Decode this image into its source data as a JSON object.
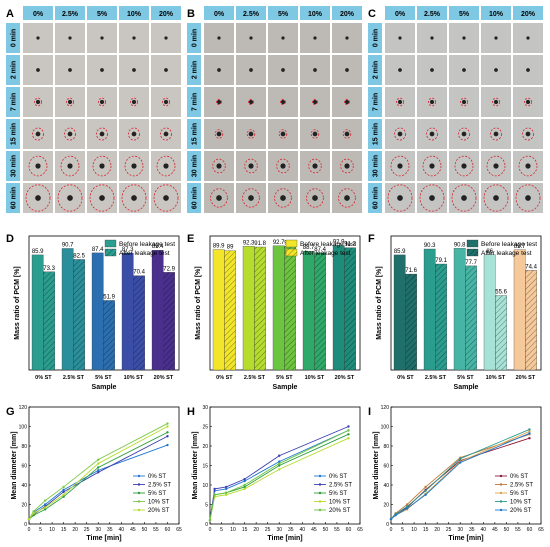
{
  "panel_letters": [
    "A",
    "B",
    "C",
    "D",
    "E",
    "F",
    "G",
    "H",
    "I"
  ],
  "photo_grid": {
    "col_headers": [
      "0%",
      "2.5%",
      "5%",
      "10%",
      "20%"
    ],
    "row_headers": [
      "0 min",
      "2 min",
      "7 min",
      "15 min",
      "30 min",
      "60 min"
    ],
    "header_color": "#7ec8e3",
    "ring_color": "#d9202a",
    "tile_colors": [
      "#c9c5c0",
      "#bdbab6",
      "#c4c4c2"
    ]
  },
  "chart_data": [
    {
      "panel": "D",
      "type": "bar",
      "categories": [
        "0% ST",
        "2.5% ST",
        "5% ST",
        "10% ST",
        "20% ST"
      ],
      "series": [
        {
          "name": "Before leakage test",
          "values": [
            85.9,
            90.7,
            87.4,
            87.3,
            89.4
          ]
        },
        {
          "name": "After leakage test",
          "values": [
            73.3,
            82.5,
            51.9,
            70.4,
            72.9
          ]
        }
      ],
      "colors": [
        "#2a9d8f",
        "#2a8f9a",
        "#2c6fb0",
        "#3a4ea8",
        "#4a2f8c"
      ],
      "legend_colors": [
        "#2a9d8f",
        "#2a9d8f"
      ],
      "xlabel": "Sample",
      "ylabel": "Mass ratio of PCM [%]",
      "ylim": [
        0,
        100
      ],
      "legend": "top-right"
    },
    {
      "panel": "E",
      "type": "bar",
      "categories": [
        "0% ST",
        "2.5% ST",
        "5% ST",
        "10% ST",
        "20% ST"
      ],
      "series": [
        {
          "name": "Before leakage test",
          "values": [
            89.9,
            92.3,
            92.7,
            88.7,
            92.9
          ]
        },
        {
          "name": "After leakage test",
          "values": [
            89.0,
            91.8,
            92.2,
            87.4,
            91.3
          ]
        }
      ],
      "colors": [
        "#f2e52a",
        "#b6dc2e",
        "#6cc53e",
        "#2fa96a",
        "#1e8c7a"
      ],
      "legend_colors": [
        "#f2e52a",
        "#f2e52a"
      ],
      "xlabel": "Sample",
      "ylabel": "Mass ratio of PCM [%]",
      "ylim": [
        0,
        100
      ],
      "legend": "top-right"
    },
    {
      "panel": "F",
      "type": "bar",
      "categories": [
        "0% ST",
        "2.5% ST",
        "5% ST",
        "10% ST",
        "20% ST"
      ],
      "series": [
        {
          "name": "Before leakage test",
          "values": [
            85.9,
            90.3,
            90.8,
            86.0,
            89.7
          ]
        },
        {
          "name": "After leakage test",
          "values": [
            71.6,
            79.1,
            77.7,
            55.6,
            74.4
          ]
        }
      ],
      "colors": [
        "#1f6f6a",
        "#2a9d8f",
        "#46b5a5",
        "#a6e3d6",
        "#f6c99b"
      ],
      "legend_colors": [
        "#1f6f6a",
        "#1f6f6a"
      ],
      "xlabel": "Sample",
      "ylabel": "Mass ratio of PCM [%]",
      "ylim": [
        0,
        100
      ],
      "legend": "top-right"
    },
    {
      "panel": "G",
      "type": "line",
      "x": [
        0,
        2,
        7,
        15,
        30,
        60
      ],
      "series": [
        {
          "name": "0% ST",
          "values": [
            5,
            12,
            20,
            35,
            55,
            81
          ]
        },
        {
          "name": "2.5% ST",
          "values": [
            5,
            10,
            18,
            33,
            53,
            90
          ]
        },
        {
          "name": "5% ST",
          "values": [
            5,
            9,
            15,
            28,
            58,
            94
          ]
        },
        {
          "name": "10% ST",
          "values": [
            5,
            13,
            24,
            38,
            66,
            103
          ]
        },
        {
          "name": "20% ST",
          "values": [
            5,
            11,
            17,
            30,
            62,
            100
          ]
        }
      ],
      "colors": [
        "#1f77d0",
        "#3b3fb0",
        "#2a9d3a",
        "#7ac943",
        "#b6dc2e"
      ],
      "xlabel": "Time [min]",
      "ylabel": "Mean diameter [mm]",
      "xlim": [
        0,
        65
      ],
      "ylim": [
        0,
        120
      ],
      "xticks": [
        0,
        5,
        10,
        15,
        20,
        25,
        30,
        35,
        40,
        45,
        50,
        55,
        60,
        65
      ],
      "yticks": [
        0,
        20,
        40,
        60,
        80,
        100,
        120
      ],
      "legend": "bottom-right"
    },
    {
      "panel": "H",
      "type": "line",
      "x": [
        0,
        2,
        7,
        15,
        30,
        60
      ],
      "series": [
        {
          "name": "0% ST",
          "values": [
            1,
            8.5,
            9,
            11,
            16,
            24
          ]
        },
        {
          "name": "2.5% ST",
          "values": [
            1,
            9,
            9.5,
            11.5,
            17.5,
            25
          ]
        },
        {
          "name": "5% ST",
          "values": [
            1,
            7.5,
            8,
            9.5,
            15,
            23
          ]
        },
        {
          "name": "10% ST",
          "values": [
            1,
            7,
            7.5,
            9,
            14,
            22
          ]
        },
        {
          "name": "20% ST",
          "values": [
            1,
            7.5,
            8,
            10,
            15.5,
            24
          ]
        }
      ],
      "colors": [
        "#1f77d0",
        "#3b3fb0",
        "#2a9d3a",
        "#b6dc2e",
        "#6cc53e"
      ],
      "xlabel": "Time [min]",
      "ylabel": "Mean diameter [mm]",
      "xlim": [
        0,
        65
      ],
      "ylim": [
        0,
        30
      ],
      "xticks": [
        0,
        5,
        10,
        15,
        20,
        25,
        30,
        35,
        40,
        45,
        50,
        55,
        60,
        65
      ],
      "yticks": [
        0,
        5,
        10,
        15,
        20,
        25,
        30
      ],
      "legend": "bottom-right"
    },
    {
      "panel": "I",
      "type": "line",
      "x": [
        0,
        2,
        7,
        15,
        30,
        60
      ],
      "series": [
        {
          "name": "0% ST",
          "values": [
            5,
            10,
            17,
            35,
            65,
            88
          ]
        },
        {
          "name": "2.5% ST",
          "values": [
            5,
            11,
            20,
            38,
            68,
            92
          ]
        },
        {
          "name": "5% ST",
          "values": [
            5,
            9,
            15,
            31,
            64,
            95
          ]
        },
        {
          "name": "10% ST",
          "values": [
            5,
            10,
            18,
            34,
            67,
            97
          ]
        },
        {
          "name": "20% ST",
          "values": [
            5,
            9,
            16,
            30,
            63,
            93
          ]
        }
      ],
      "colors": [
        "#8b1a3a",
        "#c07a3a",
        "#d9a64a",
        "#2a9d8f",
        "#1f77d0"
      ],
      "xlabel": "Time [min]",
      "ylabel": "Mean diameter [mm]",
      "xlim": [
        0,
        65
      ],
      "ylim": [
        0,
        120
      ],
      "xticks": [
        0,
        5,
        10,
        15,
        20,
        25,
        30,
        35,
        40,
        45,
        50,
        55,
        60,
        65
      ],
      "yticks": [
        0,
        20,
        40,
        60,
        80,
        100,
        120
      ],
      "legend": "bottom-right"
    }
  ]
}
